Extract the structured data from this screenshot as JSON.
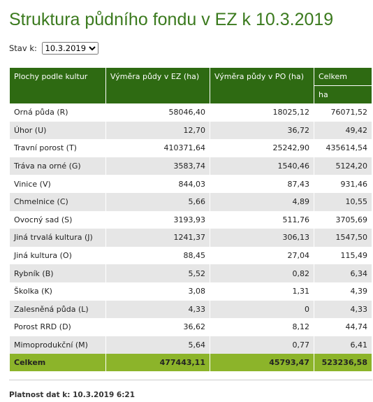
{
  "header": {
    "title": "Struktura půdního fondu v EZ k 10.3.2019",
    "stav_label": "Stav k:",
    "stav_value": "10.3.2019"
  },
  "table": {
    "columns": [
      "Plochy podle kultur",
      "Výměra půdy v EZ (ha)",
      "Výměra půdy v PO (ha)",
      "Celkem"
    ],
    "unit": "ha",
    "rows": [
      [
        "Orná půda (R)",
        "58046,40",
        "18025,12",
        "76071,52"
      ],
      [
        "Úhor (U)",
        "12,70",
        "36,72",
        "49,42"
      ],
      [
        "Travní porost (T)",
        "410371,64",
        "25242,90",
        "435614,54"
      ],
      [
        "Tráva na orné (G)",
        "3583,74",
        "1540,46",
        "5124,20"
      ],
      [
        "Vinice (V)",
        "844,03",
        "87,43",
        "931,46"
      ],
      [
        "Chmelnice (C)",
        "5,66",
        "4,89",
        "10,55"
      ],
      [
        "Ovocný sad (S)",
        "3193,93",
        "511,76",
        "3705,69"
      ],
      [
        "Jiná trvalá kultura (J)",
        "1241,37",
        "306,13",
        "1547,50"
      ],
      [
        "Jiná kultura (O)",
        "88,45",
        "27,04",
        "115,49"
      ],
      [
        "Rybník (B)",
        "5,52",
        "0,82",
        "6,34"
      ],
      [
        "Školka (K)",
        "3,08",
        "1,31",
        "4,39"
      ],
      [
        "Zalesněná půda (L)",
        "4,33",
        "0",
        "4,33"
      ],
      [
        "Porost RRD (D)",
        "36,62",
        "8,12",
        "44,74"
      ],
      [
        "Mimoprodukční (M)",
        "5,64",
        "0,77",
        "6,41"
      ]
    ],
    "total": [
      "Celkem",
      "477443,11",
      "45793,47",
      "523236,58"
    ]
  },
  "footer": {
    "validity": "Platnost dat k: 10.3.2019 6:21"
  }
}
